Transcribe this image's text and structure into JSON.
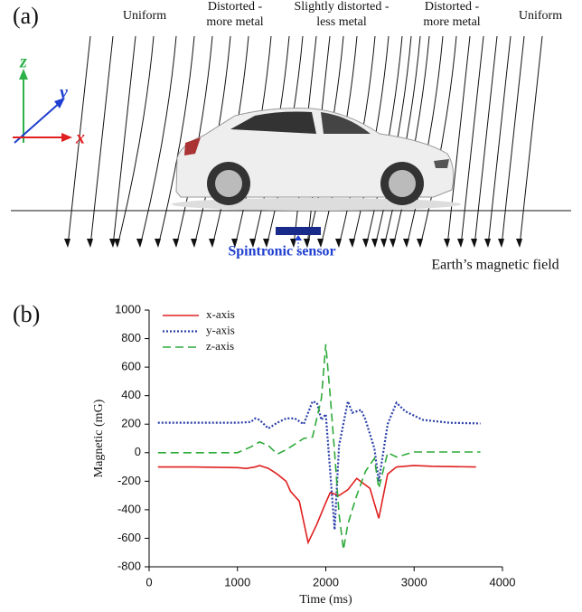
{
  "panel_a": {
    "label": "(a)",
    "zones": [
      {
        "lines": [
          "Uniform"
        ]
      },
      {
        "lines": [
          "Distorted -",
          "more metal"
        ]
      },
      {
        "lines": [
          "Slightly distorted -",
          "less metal"
        ]
      },
      {
        "lines": [
          "Distorted -",
          "more metal"
        ]
      },
      {
        "lines": [
          "Uniform"
        ]
      }
    ],
    "axes": {
      "z": "z",
      "y": "y",
      "x": "x"
    },
    "sensor_label": "Spintronic sensor",
    "field_label": "Earth’s magnetic field"
  },
  "chart_data": {
    "type": "line",
    "panel_label": "(b)",
    "x_label": "Time (ms)",
    "y_label": "Magnetic (mG)",
    "xlim": [
      0,
      4000
    ],
    "xticks": [
      0,
      1000,
      2000,
      3000,
      4000
    ],
    "ylim": [
      -800,
      1000
    ],
    "yticks": [
      -800,
      -600,
      -400,
      -200,
      0,
      200,
      400,
      600,
      800,
      1000
    ],
    "series": [
      {
        "name": "x-axis",
        "color": "#e02020",
        "dash": "solid",
        "x": [
          100,
          500,
          1000,
          1100,
          1200,
          1250,
          1350,
          1450,
          1550,
          1600,
          1700,
          1800,
          1900,
          2000,
          2050,
          2150,
          2250,
          2350,
          2500,
          2600,
          2700,
          2800,
          3000,
          3200,
          3700
        ],
        "values": [
          -100,
          -100,
          -105,
          -110,
          -100,
          -90,
          -110,
          -150,
          -200,
          -270,
          -340,
          -630,
          -500,
          -350,
          -280,
          -300,
          -260,
          -180,
          -250,
          -460,
          -150,
          -100,
          -90,
          -95,
          -100
        ]
      },
      {
        "name": "y-axis",
        "color": "#2a3fa8",
        "dash": "dotted",
        "x": [
          100,
          500,
          1000,
          1150,
          1200,
          1250,
          1350,
          1450,
          1550,
          1650,
          1750,
          1850,
          1900,
          1950,
          2000,
          2100,
          2150,
          2250,
          2300,
          2400,
          2450,
          2550,
          2600,
          2700,
          2800,
          2900,
          3100,
          3400,
          3750
        ],
        "values": [
          210,
          210,
          210,
          215,
          240,
          230,
          170,
          210,
          240,
          240,
          200,
          360,
          350,
          230,
          270,
          -540,
          50,
          360,
          280,
          300,
          230,
          30,
          -200,
          200,
          350,
          290,
          230,
          210,
          205
        ]
      },
      {
        "name": "z-axis",
        "color": "#2eaa3a",
        "dash": "dashed",
        "x": [
          100,
          500,
          1000,
          1150,
          1250,
          1350,
          1450,
          1550,
          1650,
          1750,
          1850,
          1950,
          2000,
          2050,
          2100,
          2150,
          2200,
          2250,
          2350,
          2450,
          2550,
          2600,
          2700,
          2800,
          3000,
          3400,
          3750
        ],
        "values": [
          0,
          0,
          0,
          40,
          75,
          50,
          -10,
          20,
          60,
          100,
          110,
          380,
          760,
          400,
          0,
          -430,
          -680,
          -500,
          -300,
          -130,
          -40,
          -250,
          0,
          -30,
          5,
          5,
          5
        ]
      }
    ]
  }
}
